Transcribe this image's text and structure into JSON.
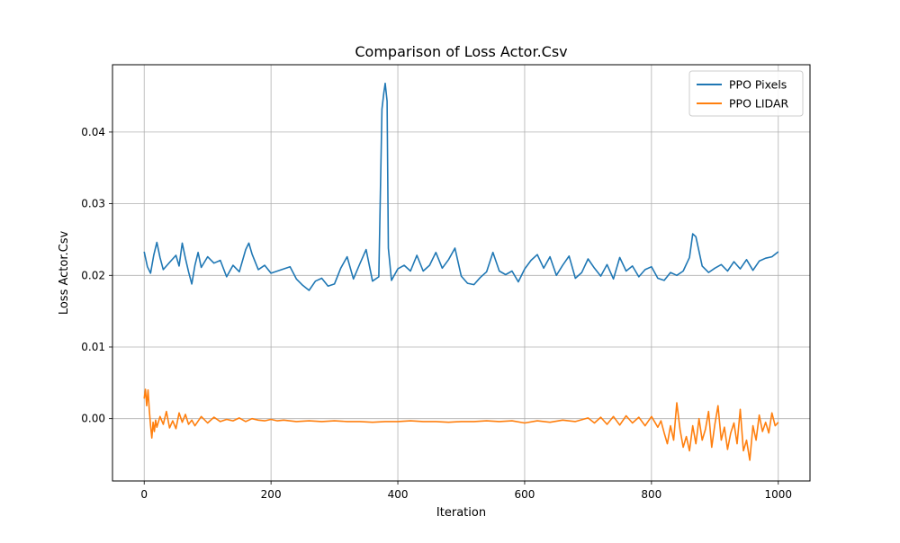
{
  "chart_data": {
    "type": "line",
    "title": "Comparison of Loss Actor.Csv",
    "xlabel": "Iteration",
    "ylabel": "Loss Actor.Csv",
    "xlim": [
      -50,
      1050
    ],
    "ylim": [
      -0.0087,
      0.0494
    ],
    "xticks": [
      0,
      200,
      400,
      600,
      800,
      1000
    ],
    "yticks": [
      0.0,
      0.01,
      0.02,
      0.03,
      0.04
    ],
    "xtick_labels": [
      "0",
      "200",
      "400",
      "600",
      "800",
      "1000"
    ],
    "ytick_labels": [
      "0.00",
      "0.01",
      "0.02",
      "0.03",
      "0.04"
    ],
    "grid": true,
    "legend_position": "top-right",
    "series": [
      {
        "name": "PPO Pixels",
        "color": "#1f77b4",
        "x": [
          0,
          5,
          10,
          15,
          20,
          25,
          30,
          40,
          50,
          55,
          60,
          65,
          70,
          75,
          80,
          85,
          90,
          100,
          110,
          120,
          130,
          140,
          150,
          160,
          165,
          170,
          180,
          190,
          200,
          210,
          220,
          230,
          240,
          250,
          260,
          270,
          280,
          290,
          300,
          310,
          320,
          330,
          340,
          350,
          360,
          370,
          375,
          378,
          380,
          383,
          385,
          390,
          400,
          410,
          420,
          430,
          440,
          450,
          460,
          470,
          480,
          490,
          500,
          510,
          520,
          530,
          540,
          550,
          560,
          570,
          580,
          590,
          600,
          610,
          620,
          630,
          640,
          650,
          660,
          670,
          680,
          690,
          700,
          710,
          720,
          730,
          740,
          750,
          760,
          770,
          780,
          790,
          800,
          810,
          820,
          830,
          840,
          850,
          860,
          865,
          870,
          880,
          890,
          900,
          910,
          920,
          930,
          940,
          950,
          960,
          970,
          980,
          990,
          1000
        ],
        "values": [
          0.0233,
          0.0212,
          0.0203,
          0.0228,
          0.0246,
          0.0225,
          0.0208,
          0.0218,
          0.0228,
          0.0213,
          0.0245,
          0.0224,
          0.0205,
          0.0188,
          0.0214,
          0.0232,
          0.0211,
          0.0226,
          0.0217,
          0.0221,
          0.0198,
          0.0214,
          0.0205,
          0.0236,
          0.0245,
          0.023,
          0.0208,
          0.0214,
          0.0203,
          0.0206,
          0.0209,
          0.0212,
          0.0195,
          0.0186,
          0.0179,
          0.0192,
          0.0196,
          0.0185,
          0.0188,
          0.021,
          0.0226,
          0.0195,
          0.0216,
          0.0236,
          0.0192,
          0.0198,
          0.0432,
          0.0455,
          0.0468,
          0.0443,
          0.0238,
          0.0193,
          0.0209,
          0.0214,
          0.0206,
          0.0228,
          0.0206,
          0.0214,
          0.0232,
          0.021,
          0.0222,
          0.0238,
          0.0199,
          0.0189,
          0.0187,
          0.0197,
          0.0205,
          0.0232,
          0.0206,
          0.0201,
          0.0206,
          0.0191,
          0.0209,
          0.0221,
          0.0229,
          0.021,
          0.0226,
          0.02,
          0.0214,
          0.0227,
          0.0196,
          0.0204,
          0.0223,
          0.021,
          0.0199,
          0.0215,
          0.0195,
          0.0225,
          0.0206,
          0.0213,
          0.0198,
          0.0208,
          0.0212,
          0.0196,
          0.0193,
          0.0204,
          0.02,
          0.0206,
          0.0225,
          0.0258,
          0.0254,
          0.0213,
          0.0204,
          0.021,
          0.0215,
          0.0206,
          0.0219,
          0.0209,
          0.0222,
          0.0207,
          0.022,
          0.0224,
          0.0226,
          0.0233
        ]
      },
      {
        "name": "PPO LIDAR",
        "color": "#ff7f0e",
        "x": [
          0,
          2,
          4,
          6,
          8,
          10,
          12,
          14,
          16,
          18,
          20,
          25,
          30,
          35,
          40,
          45,
          50,
          55,
          60,
          65,
          70,
          75,
          80,
          90,
          100,
          110,
          120,
          130,
          140,
          150,
          160,
          170,
          180,
          190,
          200,
          210,
          220,
          240,
          260,
          280,
          300,
          320,
          340,
          360,
          380,
          400,
          420,
          440,
          460,
          480,
          500,
          520,
          540,
          560,
          580,
          600,
          620,
          640,
          660,
          680,
          700,
          710,
          720,
          730,
          740,
          750,
          760,
          770,
          780,
          790,
          800,
          810,
          815,
          820,
          825,
          830,
          835,
          840,
          845,
          850,
          855,
          860,
          865,
          870,
          875,
          880,
          885,
          890,
          895,
          900,
          905,
          910,
          915,
          920,
          925,
          930,
          935,
          940,
          945,
          950,
          955,
          960,
          965,
          970,
          975,
          980,
          985,
          990,
          995,
          1000
        ],
        "values": [
          0.0028,
          0.0041,
          0.0018,
          0.004,
          0.0012,
          -0.001,
          -0.0027,
          -0.0005,
          -0.0018,
          -0.0002,
          -0.0012,
          0.0003,
          -0.0008,
          0.001,
          -0.0013,
          -0.0003,
          -0.0014,
          0.0008,
          -0.0005,
          0.0006,
          -0.0008,
          -0.0002,
          -0.001,
          0.0003,
          -0.0006,
          0.0002,
          -0.0004,
          -0.0001,
          -0.0003,
          0.0001,
          -0.0004,
          0.0,
          -0.0002,
          -0.0003,
          -0.0001,
          -0.0003,
          -0.0002,
          -0.0004,
          -0.0003,
          -0.0004,
          -0.0003,
          -0.0004,
          -0.0004,
          -0.0005,
          -0.0004,
          -0.0004,
          -0.0003,
          -0.0004,
          -0.0004,
          -0.0005,
          -0.0004,
          -0.0004,
          -0.0003,
          -0.0004,
          -0.0003,
          -0.0006,
          -0.0003,
          -0.0005,
          -0.0002,
          -0.0004,
          0.0001,
          -0.0006,
          0.0002,
          -0.0008,
          0.0003,
          -0.0009,
          0.0004,
          -0.0006,
          0.0002,
          -0.001,
          0.0003,
          -0.0012,
          -0.0003,
          -0.002,
          -0.0035,
          -0.001,
          -0.003,
          0.0022,
          -0.0015,
          -0.004,
          -0.0025,
          -0.0045,
          -0.001,
          -0.0035,
          0.0,
          -0.003,
          -0.0015,
          0.001,
          -0.004,
          -0.0008,
          0.0018,
          -0.003,
          -0.0012,
          -0.0043,
          -0.002,
          -0.0006,
          -0.0035,
          0.0013,
          -0.0045,
          -0.003,
          -0.0058,
          -0.001,
          -0.003,
          0.0005,
          -0.0018,
          -0.0005,
          -0.002,
          0.0008,
          -0.001,
          -0.0005
        ]
      }
    ]
  }
}
